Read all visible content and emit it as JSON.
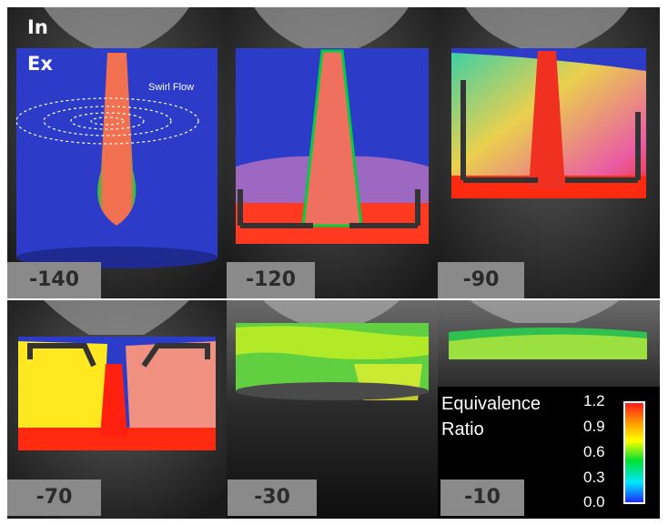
{
  "panels": [
    {
      "label": "-140"
    },
    {
      "label": "-120"
    },
    {
      "label": "-90"
    },
    {
      "label": "-70"
    },
    {
      "label": "-30"
    },
    {
      "label": "-10"
    }
  ],
  "overlay": {
    "intake": "In",
    "exhaust": "Ex",
    "swirl": "Swirl Flow"
  },
  "legend": {
    "title_line1": "Equivalence",
    "title_line2": "Ratio",
    "ticks": [
      "1.2",
      "0.9",
      "0.6",
      "0.3",
      "0.0"
    ],
    "colors": [
      "#ff1a1a",
      "#ff9a00",
      "#ffff00",
      "#00e030",
      "#00e8ff",
      "#1e2cff"
    ]
  },
  "colors": {
    "background": "#2e2e2e",
    "cylinder_blue": "#2c3cc8",
    "label_bg": "#8a8a8a"
  }
}
